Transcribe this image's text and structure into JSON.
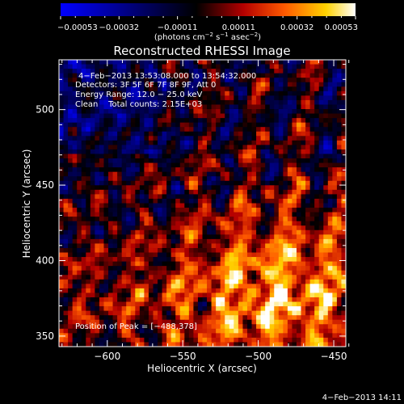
{
  "chart_data": {
    "type": "heatmap",
    "title": "Reconstructed RHESSI Image",
    "xlabel": "Heliocentric X (arcsec)",
    "ylabel": "Heliocentric Y (arcsec)",
    "xlim": [
      -632,
      -442
    ],
    "ylim": [
      343,
      533
    ],
    "x_ticks": [
      -600,
      -550,
      -500,
      -450
    ],
    "y_ticks": [
      350,
      400,
      450,
      500
    ],
    "x_tick_labels": [
      "−600",
      "−550",
      "−500",
      "−450"
    ],
    "y_tick_labels": [
      "350",
      "400",
      "450",
      "500"
    ],
    "colorbar": {
      "min": -0.00053,
      "max": 0.00053,
      "ticks": [
        -0.00053,
        -0.00032,
        -0.00011,
        0.00011,
        0.00032,
        0.00053
      ],
      "tick_labels": [
        "−0.00053",
        "−0.00032",
        "−0.00011",
        "0.00011",
        "0.00032",
        "0.00053"
      ],
      "label_parts": [
        "(photons cm",
        "−2",
        " s",
        "−1",
        " asec",
        "−2",
        ")"
      ],
      "colormap": [
        "#0000ff",
        "#000000",
        "#b40000",
        "#ff5a00",
        "#ffd200",
        "#ffffff"
      ]
    },
    "annotations": [
      "4−Feb−2013 13:53:08.000 to 13:54:32.000",
      "Detectors: 3F 5F 6F 7F 8F 9F, Att 0",
      "Energy Range: 12.0 − 25.0 keV",
      "Clean    Total counts: 2.15E+03"
    ],
    "peak_label": "Position of Peak = [−488,378]",
    "peak_position": [
      -488,
      378
    ],
    "grid": false
  },
  "footer_timestamp": "4−Feb−2013 14:11"
}
